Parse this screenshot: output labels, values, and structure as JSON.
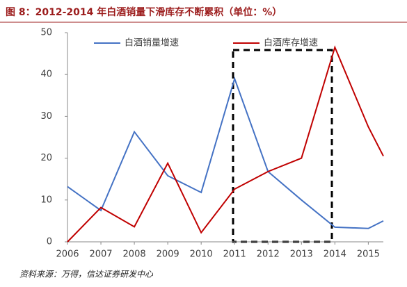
{
  "chart_data": {
    "type": "line",
    "title": "图 8：2012-2014 年白酒销量下滑库存不断累积（单位：%）",
    "source": "资料来源：万得，信达证券研发中心",
    "x": [
      2006,
      2007,
      2008,
      2009,
      2010,
      2011,
      2012,
      2013,
      2014,
      2015,
      2015.45
    ],
    "xlim": [
      2006,
      2015.45
    ],
    "xticks": [
      2006,
      2007,
      2008,
      2009,
      2010,
      2011,
      2012,
      2013,
      2014,
      2015
    ],
    "ylim": [
      0,
      50
    ],
    "yticks": [
      0,
      10,
      20,
      30,
      40,
      50
    ],
    "series": [
      {
        "name": "白酒销量增速",
        "color": "#4472c4",
        "values": [
          13.2,
          7.5,
          26.3,
          15.8,
          11.8,
          39,
          16.8,
          10,
          3.5,
          3.2,
          5
        ]
      },
      {
        "name": "白酒库存增速",
        "color": "#c00000",
        "values": [
          0,
          8.2,
          3.6,
          18.8,
          2.2,
          12.6,
          16.8,
          20,
          46.5,
          27.5,
          20.5
        ]
      }
    ]
  }
}
